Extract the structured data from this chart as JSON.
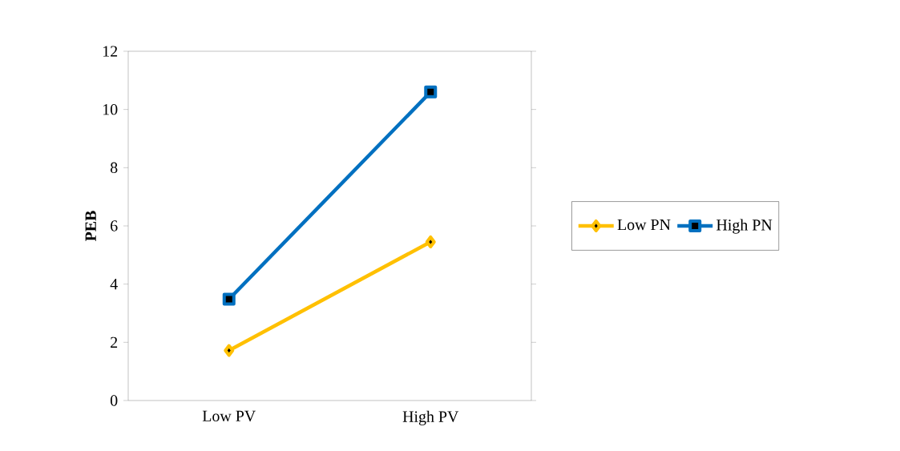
{
  "chart_data": {
    "type": "line",
    "ylabel": "PEB",
    "categories": [
      "Low PV",
      "High PV"
    ],
    "series": [
      {
        "name": "Low PN",
        "color": "#ffc000",
        "values": [
          1.72,
          5.45
        ],
        "marker": "diamond"
      },
      {
        "name": "High PN",
        "color": "#0070c0",
        "values": [
          3.48,
          10.6
        ],
        "marker": "square"
      }
    ],
    "ylim": [
      0,
      12
    ],
    "yticks": [
      0,
      2,
      4,
      6,
      8,
      10,
      12
    ],
    "legend": "right",
    "grid": false,
    "line_style": "solid"
  }
}
